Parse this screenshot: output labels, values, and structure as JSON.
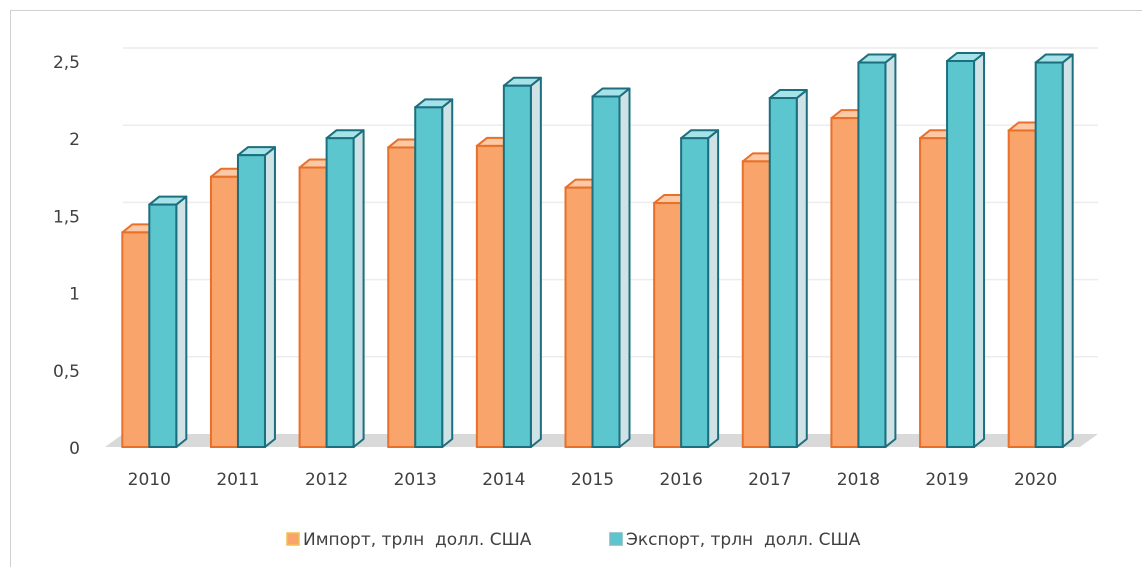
{
  "chart_data": {
    "type": "bar3d",
    "categories": [
      "2010",
      "2011",
      "2012",
      "2013",
      "2014",
      "2015",
      "2016",
      "2017",
      "2018",
      "2019",
      "2020"
    ],
    "series": [
      {
        "name": "Импорт, трлн  долл. США",
        "color": "#f9a46a",
        "values": [
          1.39,
          1.75,
          1.81,
          1.94,
          1.95,
          1.68,
          1.58,
          1.85,
          2.13,
          2.0,
          2.05
        ]
      },
      {
        "name": "Экспорт, трлн  долл. США",
        "color": "#5cc6cf",
        "values": [
          1.57,
          1.89,
          2.0,
          2.2,
          2.34,
          2.27,
          2.0,
          2.26,
          2.49,
          2.5,
          2.49
        ]
      }
    ],
    "ylim": [
      0,
      2.5
    ],
    "yticks": [
      0,
      {
        "value": 0.5,
        "label": "0,5"
      },
      1,
      {
        "value": 1.5,
        "label": "1,5"
      },
      2,
      {
        "value": 2.5,
        "label": "2,5"
      }
    ],
    "grid": true,
    "legend": "bottom"
  }
}
